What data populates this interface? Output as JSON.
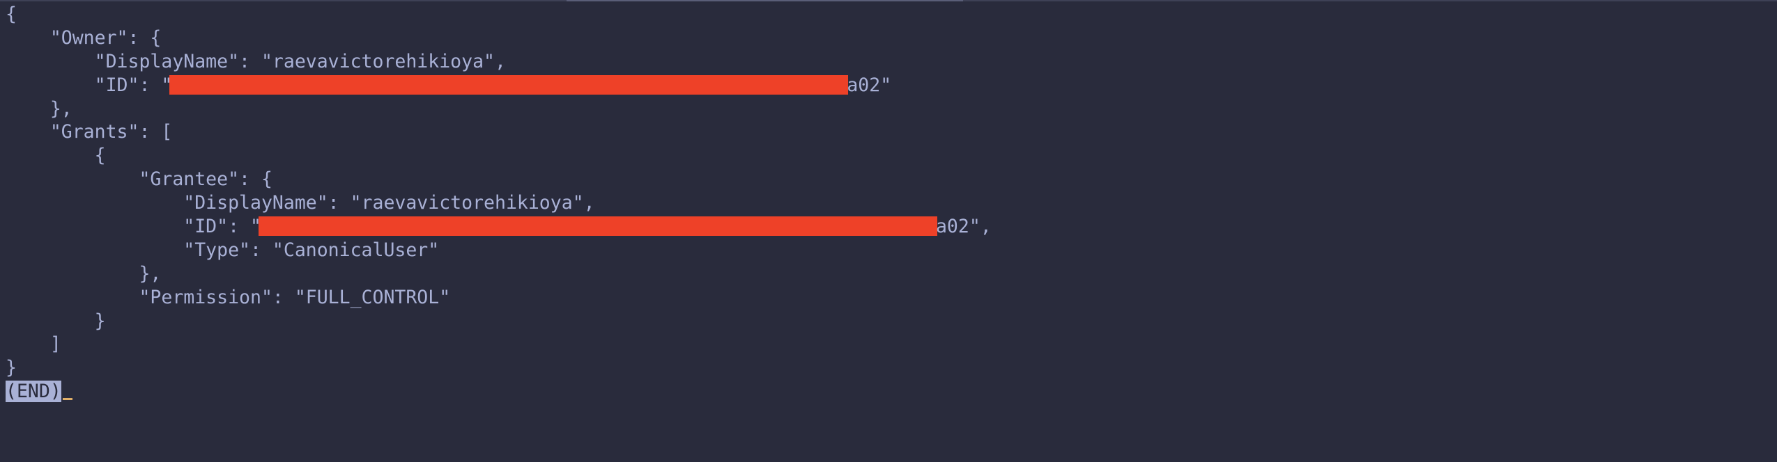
{
  "terminal": {
    "lines": [
      {
        "text": "{"
      },
      {
        "text": "    \"Owner\": {"
      },
      {
        "text": "        \"DisplayName\": \"raevavictorehikioya\","
      },
      {
        "pre": "        \"ID\": \"",
        "post": "a02\""
      },
      {
        "text": "    },"
      },
      {
        "text": "    \"Grants\": ["
      },
      {
        "text": "        {"
      },
      {
        "text": "            \"Grantee\": {"
      },
      {
        "text": "                \"DisplayName\": \"raevavictorehikioya\","
      },
      {
        "pre": "                \"ID\": \"",
        "post": "a02\","
      },
      {
        "text": "                \"Type\": \"CanonicalUser\""
      },
      {
        "text": "            },"
      },
      {
        "text": "            \"Permission\": \"FULL_CONTROL\""
      },
      {
        "text": "        }"
      },
      {
        "text": "    ]"
      },
      {
        "text": "}"
      }
    ],
    "prompt": "(END)"
  }
}
